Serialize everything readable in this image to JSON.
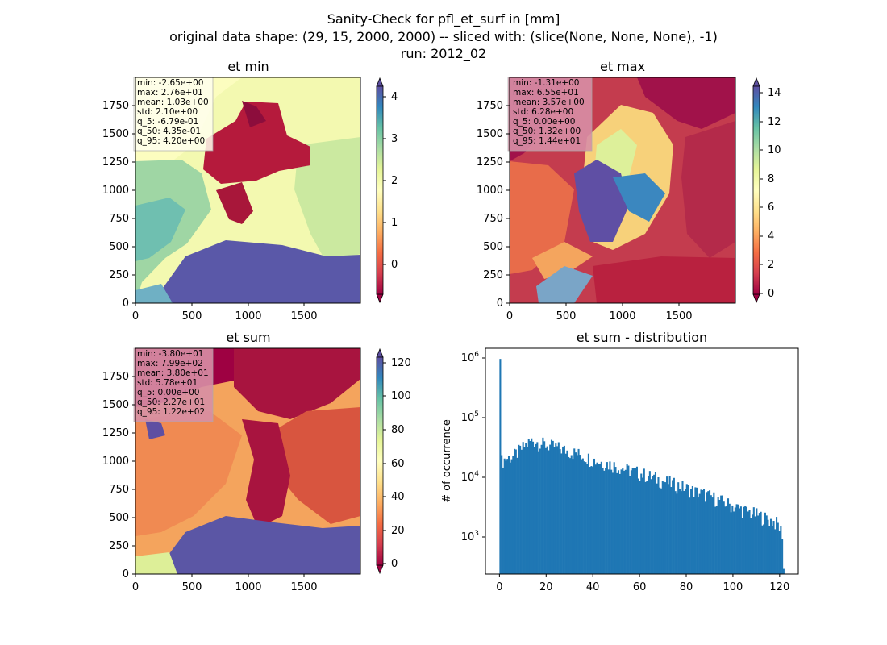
{
  "figure": {
    "title_lines": [
      "Sanity-Check for pfl_et_surf in [mm]",
      "original data shape: (29, 15, 2000, 2000) -- sliced with: (slice(None, None, None), -1)",
      "run: 2012_02"
    ]
  },
  "chart_data": [
    {
      "type": "heatmap",
      "title": "et min",
      "colormap": "Spectral",
      "xlim": [
        0,
        2000
      ],
      "ylim": [
        0,
        2000
      ],
      "xticks": [
        "0",
        "500",
        "1000",
        "1500"
      ],
      "yticks": [
        "0",
        "250",
        "500",
        "750",
        "1000",
        "1250",
        "1500",
        "1750"
      ],
      "colorbar": {
        "ticks": [
          "0",
          "1",
          "2",
          "3",
          "4"
        ],
        "range": [
          -0.7,
          4.3
        ],
        "extend": "both"
      },
      "stats": [
        "min: -2.65e+00",
        "max: 2.76e+01",
        "mean: 1.03e+00",
        "std: 2.10e+00",
        "q_5: -6.79e-01",
        "q_50: 4.35e-01",
        "q_95: 4.20e+00"
      ],
      "stats_box_color": "#ffffee"
    },
    {
      "type": "heatmap",
      "title": "et max",
      "colormap": "Spectral",
      "xlim": [
        0,
        2000
      ],
      "ylim": [
        0,
        2000
      ],
      "xticks": [
        "0",
        "500",
        "1000",
        "1500"
      ],
      "yticks": [
        "0",
        "250",
        "500",
        "750",
        "1000",
        "1250",
        "1500",
        "1750"
      ],
      "colorbar": {
        "ticks": [
          "0",
          "2",
          "4",
          "6",
          "8",
          "10",
          "12",
          "14"
        ],
        "range": [
          0,
          14.4
        ],
        "extend": "both"
      },
      "stats": [
        "min: -1.31e+00",
        "max: 6.55e+01",
        "mean: 3.57e+00",
        "std: 6.28e+00",
        "q_5: 0.00e+00",
        "q_50: 1.32e+00",
        "q_95: 1.44e+01"
      ],
      "stats_box_color": "#d88fa6"
    },
    {
      "type": "heatmap",
      "title": "et sum",
      "colormap": "Spectral",
      "xlim": [
        0,
        2000
      ],
      "ylim": [
        0,
        2000
      ],
      "xticks": [
        "0",
        "500",
        "1000",
        "1500"
      ],
      "yticks": [
        "0",
        "250",
        "500",
        "750",
        "1000",
        "1250",
        "1500",
        "1750"
      ],
      "colorbar": {
        "ticks": [
          "0",
          "20",
          "40",
          "60",
          "80",
          "100",
          "120"
        ],
        "range": [
          -4,
          124
        ],
        "extend": "both"
      },
      "stats": [
        "min: -3.80e+01",
        "max: 7.99e+02",
        "mean: 3.80e+01",
        "std: 5.78e+01",
        "q_5: 0.00e+00",
        "q_50: 2.27e+01",
        "q_95: 1.22e+02"
      ],
      "stats_box_color": "#d88fa6"
    },
    {
      "type": "bar",
      "title": "et sum - distribution",
      "xlabel": "",
      "ylabel": "# of occurrence",
      "yscale": "log",
      "xlim": [
        -6,
        128
      ],
      "ylim": [
        250,
        1300000
      ],
      "xticks": [
        0,
        20,
        40,
        60,
        80,
        100,
        120
      ],
      "bar_color": "#1f77b4",
      "histogram": {
        "bin_start": 0,
        "bin_width": 0.61,
        "spike_value": 870000,
        "trend_points": [
          [
            0.5,
            18000
          ],
          [
            3,
            20000
          ],
          [
            6,
            22000
          ],
          [
            10,
            30000
          ],
          [
            14,
            40000
          ],
          [
            18,
            35000
          ],
          [
            25,
            30000
          ],
          [
            30,
            26000
          ],
          [
            35,
            23000
          ],
          [
            40,
            19000
          ],
          [
            45,
            17000
          ],
          [
            50,
            15000
          ],
          [
            55,
            13000
          ],
          [
            60,
            11500
          ],
          [
            65,
            10000
          ],
          [
            70,
            8500
          ],
          [
            75,
            7500
          ],
          [
            80,
            6500
          ],
          [
            85,
            5500
          ],
          [
            90,
            4800
          ],
          [
            95,
            4000
          ],
          [
            100,
            3300
          ],
          [
            105,
            2800
          ],
          [
            110,
            2400
          ],
          [
            115,
            2000
          ],
          [
            119,
            1700
          ],
          [
            120.5,
            1300
          ],
          [
            121.5,
            1100
          ],
          [
            121.7,
            300
          ]
        ]
      }
    }
  ]
}
